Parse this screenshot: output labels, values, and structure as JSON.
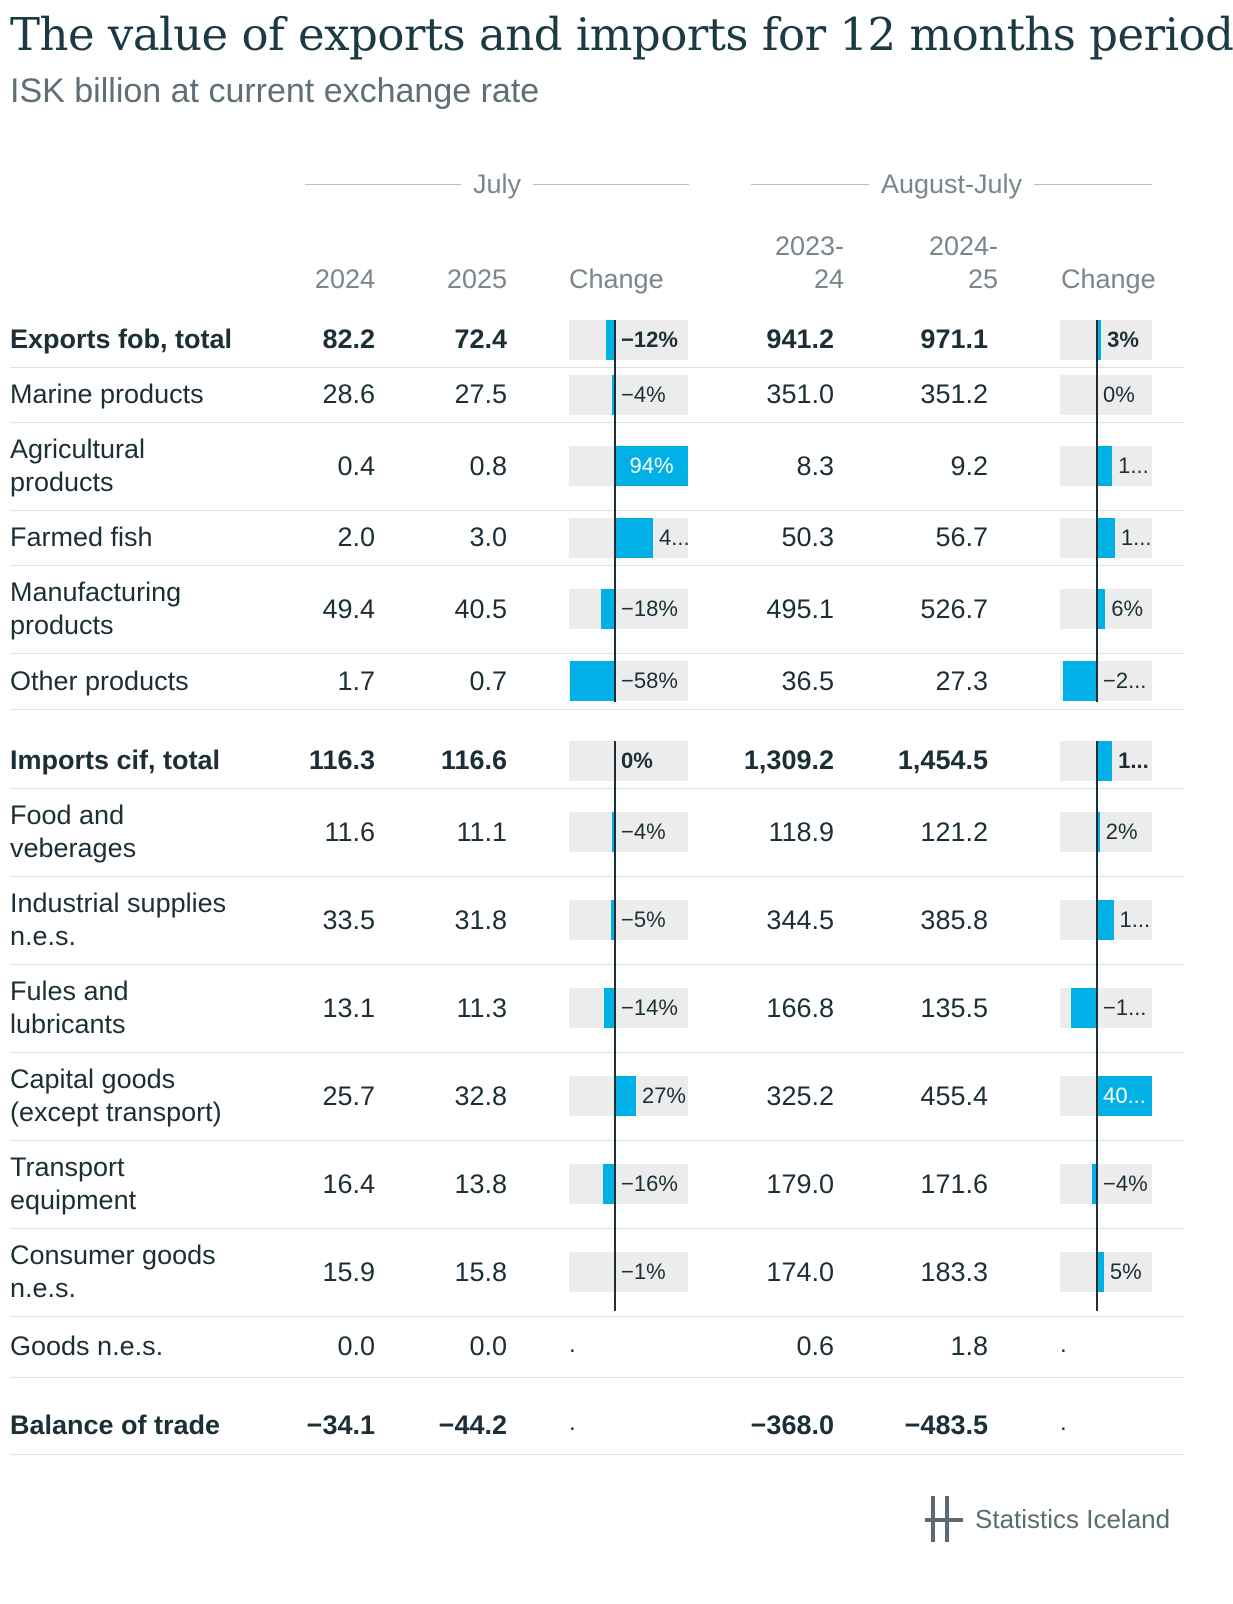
{
  "title": "The value of exports and imports for 12 months period",
  "subtitle": "ISK billion at current exchange rate",
  "groups": {
    "july": "July",
    "aug_july": "August-July"
  },
  "headers": {
    "y2024": "2024",
    "y2025": "2025",
    "change1": "Change",
    "p1": "2023-\n24",
    "p2": "2024-\n25",
    "change2": "Change"
  },
  "chart_data": {
    "type": "table",
    "title": "The value of exports and imports for 12 months period",
    "subtitle": "ISK billion at current exchange rate",
    "columns": [
      "July 2024",
      "July 2025",
      "July Change",
      "August-July 2023-24",
      "August-July 2024-25",
      "August-July Change"
    ],
    "rows": [
      {
        "label": "Exports fob, total",
        "bold": true,
        "v1": "82.2",
        "v2": "72.4",
        "c1": -12,
        "c1_text": "−12%",
        "v3": "941.2",
        "v4": "971.1",
        "c2": 3,
        "c2_text": "3%"
      },
      {
        "label": "Marine products",
        "v1": "28.6",
        "v2": "27.5",
        "c1": -4,
        "c1_text": "−4%",
        "v3": "351.0",
        "v4": "351.2",
        "c2": 0,
        "c2_text": "0%"
      },
      {
        "label": "Agricultural products",
        "v1": "0.4",
        "v2": "0.8",
        "c1": 94,
        "c1_text": "94%",
        "v3": "8.3",
        "v4": "9.2",
        "c2": 11,
        "c2_text": "1..."
      },
      {
        "label": "Farmed fish",
        "v1": "2.0",
        "v2": "3.0",
        "c1": 49,
        "c1_text": "4...",
        "v3": "50.3",
        "v4": "56.7",
        "c2": 13,
        "c2_text": "1..."
      },
      {
        "label": "Manufacturing products",
        "v1": "49.4",
        "v2": "40.5",
        "c1": -18,
        "c1_text": "−18%",
        "v3": "495.1",
        "v4": "526.7",
        "c2": 6,
        "c2_text": "6%"
      },
      {
        "label": "Other products",
        "v1": "1.7",
        "v2": "0.7",
        "c1": -58,
        "c1_text": "−58%",
        "v3": "36.5",
        "v4": "27.3",
        "c2": -25,
        "c2_text": "−2..."
      },
      {
        "label": "Imports cif, total",
        "bold": true,
        "gap": true,
        "v1": "116.3",
        "v2": "116.6",
        "c1": 0,
        "c1_text": "0%",
        "v3": "1,309.2",
        "v4": "1,454.5",
        "c2": 11,
        "c2_text": "1..."
      },
      {
        "label": "Food and veberages",
        "v1": "11.6",
        "v2": "11.1",
        "c1": -4,
        "c1_text": "−4%",
        "v3": "118.9",
        "v4": "121.2",
        "c2": 2,
        "c2_text": "2%"
      },
      {
        "label": "Industrial supplies n.e.s.",
        "v1": "33.5",
        "v2": "31.8",
        "c1": -5,
        "c1_text": "−5%",
        "v3": "344.5",
        "v4": "385.8",
        "c2": 12,
        "c2_text": "1..."
      },
      {
        "label": "Fules and lubricants",
        "v1": "13.1",
        "v2": "11.3",
        "c1": -14,
        "c1_text": "−14%",
        "v3": "166.8",
        "v4": "135.5",
        "c2": -19,
        "c2_text": "−1..."
      },
      {
        "label": "Capital goods (except transport)",
        "v1": "25.7",
        "v2": "32.8",
        "c1": 27,
        "c1_text": "27%",
        "v3": "325.2",
        "v4": "455.4",
        "c2": 40,
        "c2_text": "40..."
      },
      {
        "label": "Transport equipment",
        "v1": "16.4",
        "v2": "13.8",
        "c1": -16,
        "c1_text": "−16%",
        "v3": "179.0",
        "v4": "171.6",
        "c2": -4,
        "c2_text": "−4%"
      },
      {
        "label": "Consumer goods n.e.s.",
        "v1": "15.9",
        "v2": "15.8",
        "c1": -1,
        "c1_text": "−1%",
        "v3": "174.0",
        "v4": "183.3",
        "c2": 5,
        "c2_text": "5%"
      },
      {
        "label": "Goods n.e.s.",
        "v1": "0.0",
        "v2": "0.0",
        "c1": null,
        "c1_text": ".",
        "v3": "0.6",
        "v4": "1.8",
        "c2": null,
        "c2_text": "."
      },
      {
        "label": "Balance of trade",
        "bold": true,
        "gap": true,
        "v1": "−34.1",
        "v2": "−44.2",
        "c1": null,
        "c1_text": ".",
        "v3": "−368.0",
        "v4": "−483.5",
        "c2": null,
        "c2_text": "."
      }
    ]
  },
  "logo": {
    "text": "Statistics Iceland",
    "icon": "statistics-iceland-logo-icon"
  },
  "colors": {
    "bar": "#00b0e6",
    "bar_bg": "#ececec",
    "text": "#1c2e36",
    "muted": "#7a868c"
  }
}
